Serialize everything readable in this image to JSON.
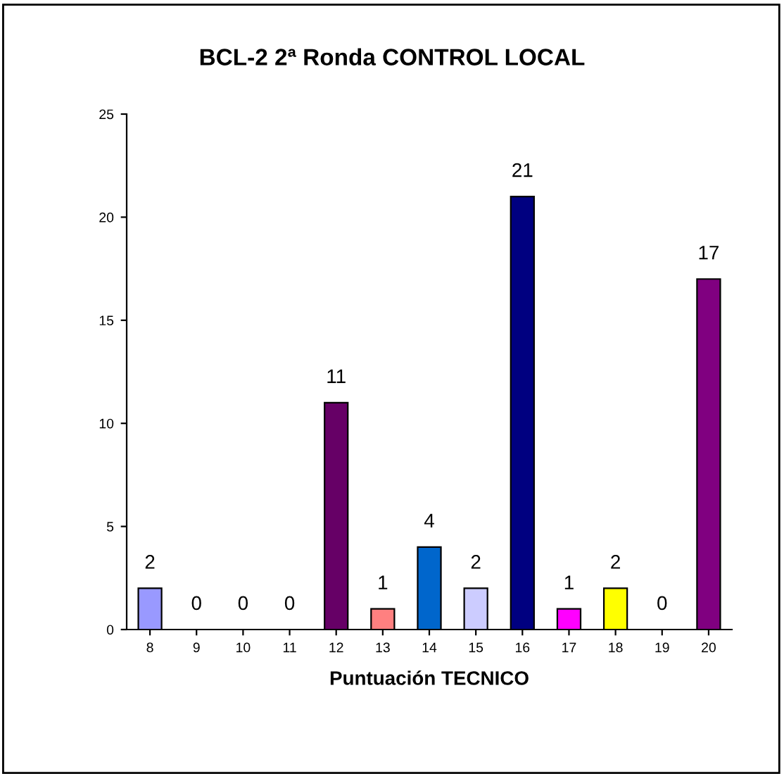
{
  "chart_data": {
    "type": "bar",
    "title": "BCL-2 2ª Ronda CONTROL LOCAL",
    "xlabel": "Puntuación TECNICO",
    "categories": [
      "8",
      "9",
      "10",
      "11",
      "12",
      "13",
      "14",
      "15",
      "16",
      "17",
      "18",
      "19",
      "20"
    ],
    "values": [
      2,
      0,
      0,
      0,
      11,
      1,
      4,
      2,
      21,
      1,
      2,
      0,
      17
    ],
    "colors": [
      "#9999ff",
      null,
      null,
      null,
      "#660066",
      "#ff8080",
      "#0066cc",
      "#ccccff",
      "#000080",
      "#ff00ff",
      "#ffff00",
      null,
      "#800080"
    ],
    "ylim": [
      0,
      25
    ],
    "yticks": [
      0,
      5,
      10,
      15,
      20,
      25
    ],
    "grid": false,
    "legend": false,
    "data_labels": true
  }
}
